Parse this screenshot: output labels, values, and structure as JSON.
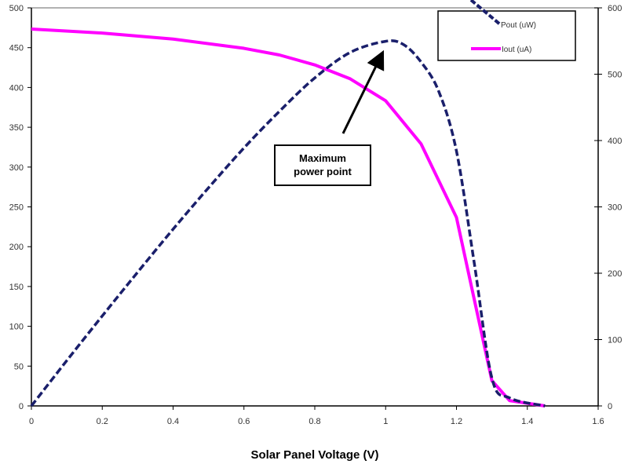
{
  "chart_data": {
    "type": "line",
    "title": "",
    "xlabel": "Solar Panel Voltage (V)",
    "ylabel": "",
    "ylabel_right": "",
    "xlim": [
      0,
      1.6
    ],
    "ylim": [
      0,
      500
    ],
    "ylim_right": [
      0,
      600
    ],
    "xticks": [
      "0",
      "0.2",
      "0.4",
      "0.6",
      "0.8",
      "1",
      "1.2",
      "1.4",
      "1.6"
    ],
    "yticks": [
      "0",
      "50",
      "100",
      "150",
      "200",
      "250",
      "300",
      "350",
      "400",
      "450",
      "500"
    ],
    "yticks_right": [
      "0",
      "100",
      "200",
      "300",
      "400",
      "500",
      "600"
    ],
    "grid": false,
    "legend_position": "top-right",
    "series": [
      {
        "name": "Pout (uW)",
        "axis": "left",
        "style": "dashed",
        "color": "#1a1f6b",
        "x": [
          0,
          0.1,
          0.2,
          0.3,
          0.4,
          0.5,
          0.6,
          0.7,
          0.8,
          0.9,
          1.0,
          1.05,
          1.1,
          1.15,
          1.2,
          1.25,
          1.3,
          1.35,
          1.45
        ],
        "y": [
          0,
          57,
          113,
          168,
          222,
          274,
          324,
          370,
          412,
          444,
          458,
          454,
          432,
          395,
          320,
          180,
          35,
          10,
          0
        ]
      },
      {
        "name": "Iout (uA)",
        "axis": "right",
        "style": "solid",
        "color": "#ff00ff",
        "x": [
          0,
          0.2,
          0.4,
          0.6,
          0.7,
          0.8,
          0.9,
          1.0,
          1.1,
          1.2,
          1.3,
          1.35,
          1.45
        ],
        "y": [
          568,
          562,
          553,
          539,
          529,
          514,
          493,
          460,
          395,
          284,
          38,
          8,
          0
        ]
      }
    ],
    "annotations": [
      {
        "text_lines": [
          "Maximum",
          "power point"
        ],
        "points_to": [
          1.0,
          455
        ]
      }
    ]
  }
}
